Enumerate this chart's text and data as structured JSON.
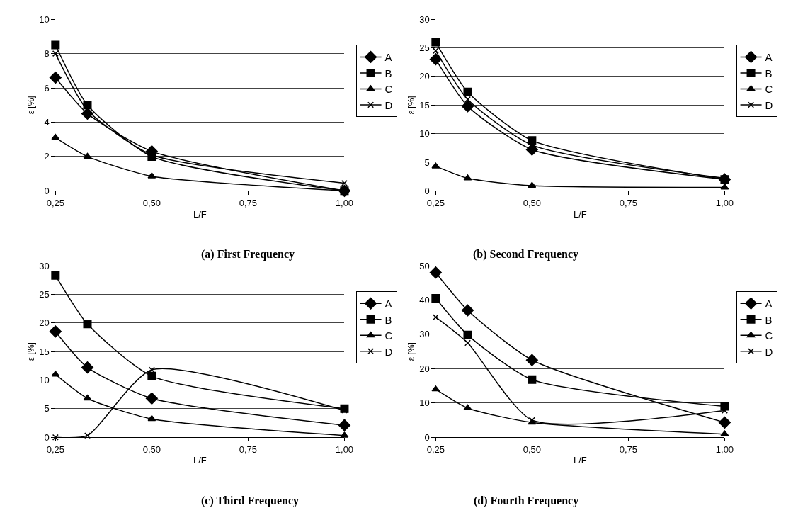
{
  "chart_data": [
    {
      "type": "line",
      "title": "(a) First Frequency",
      "xlabel": "L/F",
      "ylabel": "ε [%]",
      "x": [
        0.25,
        0.333,
        0.5,
        1.0
      ],
      "xlim": [
        0.25,
        1.0
      ],
      "xticks": [
        {
          "value": 0.25,
          "label": "0,25"
        },
        {
          "value": 0.5,
          "label": "0,50"
        },
        {
          "value": 0.75,
          "label": "0,75"
        },
        {
          "value": 1.0,
          "label": "1,00"
        }
      ],
      "ylim": [
        0,
        10
      ],
      "yticks": [
        0,
        2,
        4,
        6,
        8,
        10
      ],
      "grid": "y",
      "legend": "right",
      "line_style": "solid",
      "series": [
        {
          "name": "A",
          "color": "#000000",
          "marker": "diamond",
          "values": [
            6.6,
            4.5,
            2.3,
            0.0
          ]
        },
        {
          "name": "B",
          "color": "#000000",
          "marker": "square",
          "values": [
            8.5,
            5.0,
            2.0,
            0.0
          ]
        },
        {
          "name": "C",
          "color": "#000000",
          "marker": "triangle",
          "values": [
            3.1,
            2.0,
            0.85,
            0.0
          ]
        },
        {
          "name": "D",
          "color": "#000000",
          "marker": "cross",
          "values": [
            8.0,
            4.7,
            2.1,
            0.45
          ]
        }
      ]
    },
    {
      "type": "line",
      "title": "(b) Second Frequency",
      "xlabel": "L/F",
      "ylabel": "ε [%]",
      "x": [
        0.25,
        0.333,
        0.5,
        1.0
      ],
      "xlim": [
        0.25,
        1.0
      ],
      "xticks": [
        {
          "value": 0.25,
          "label": "0,25"
        },
        {
          "value": 0.5,
          "label": "0,50"
        },
        {
          "value": 0.75,
          "label": "0,75"
        },
        {
          "value": 1.0,
          "label": "1,00"
        }
      ],
      "ylim": [
        0,
        30
      ],
      "yticks": [
        0,
        5,
        10,
        15,
        20,
        25,
        30
      ],
      "grid": "y",
      "legend": "right",
      "line_style": "solid",
      "series": [
        {
          "name": "A",
          "color": "#000000",
          "marker": "diamond",
          "values": [
            23.0,
            14.8,
            7.2,
            2.0
          ]
        },
        {
          "name": "B",
          "color": "#000000",
          "marker": "square",
          "values": [
            26.0,
            17.3,
            8.8,
            2.0
          ]
        },
        {
          "name": "C",
          "color": "#000000",
          "marker": "triangle",
          "values": [
            4.3,
            2.2,
            0.9,
            0.6
          ]
        },
        {
          "name": "D",
          "color": "#000000",
          "marker": "cross",
          "values": [
            24.5,
            16.0,
            8.0,
            2.2
          ]
        }
      ]
    },
    {
      "type": "line",
      "title": "(c) Third Frequency",
      "xlabel": "L/F",
      "ylabel": "ε [%]",
      "x": [
        0.25,
        0.333,
        0.5,
        1.0
      ],
      "xlim": [
        0.25,
        1.0
      ],
      "xticks": [
        {
          "value": 0.25,
          "label": "0,25"
        },
        {
          "value": 0.5,
          "label": "0,50"
        },
        {
          "value": 0.75,
          "label": "0,75"
        },
        {
          "value": 1.0,
          "label": "1,00"
        }
      ],
      "ylim": [
        0,
        30
      ],
      "yticks": [
        0,
        5,
        10,
        15,
        20,
        25,
        30
      ],
      "grid": "y",
      "legend": "right",
      "line_style": "solid",
      "series": [
        {
          "name": "A",
          "color": "#000000",
          "marker": "diamond",
          "values": [
            18.5,
            12.2,
            6.8,
            2.1
          ]
        },
        {
          "name": "B",
          "color": "#000000",
          "marker": "square",
          "values": [
            28.3,
            19.8,
            10.7,
            5.0
          ]
        },
        {
          "name": "C",
          "color": "#000000",
          "marker": "triangle",
          "values": [
            11.0,
            6.8,
            3.2,
            0.3
          ]
        },
        {
          "name": "D",
          "color": "#000000",
          "marker": "cross",
          "values": [
            0.0,
            0.3,
            11.8,
            4.7
          ]
        }
      ]
    },
    {
      "type": "line",
      "title": "(d) Fourth Frequency",
      "xlabel": "L/F",
      "ylabel": "ε [%]",
      "x": [
        0.25,
        0.333,
        0.5,
        1.0
      ],
      "xlim": [
        0.25,
        1.0
      ],
      "xticks": [
        {
          "value": 0.25,
          "label": "0,25"
        },
        {
          "value": 0.5,
          "label": "0,50"
        },
        {
          "value": 0.75,
          "label": "0,75"
        },
        {
          "value": 1.0,
          "label": "1,00"
        }
      ],
      "ylim": [
        0,
        50
      ],
      "yticks": [
        0,
        10,
        20,
        30,
        40,
        50
      ],
      "grid": "y",
      "legend": "right",
      "line_style": "solid",
      "series": [
        {
          "name": "A",
          "color": "#000000",
          "marker": "diamond",
          "values": [
            48.0,
            37.0,
            22.5,
            4.3
          ]
        },
        {
          "name": "B",
          "color": "#000000",
          "marker": "square",
          "values": [
            40.5,
            29.8,
            16.8,
            9.0
          ]
        },
        {
          "name": "C",
          "color": "#000000",
          "marker": "triangle",
          "values": [
            14.0,
            8.5,
            4.3,
            0.9
          ]
        },
        {
          "name": "D",
          "color": "#000000",
          "marker": "cross",
          "values": [
            35.0,
            27.5,
            5.0,
            7.8
          ]
        }
      ]
    }
  ]
}
